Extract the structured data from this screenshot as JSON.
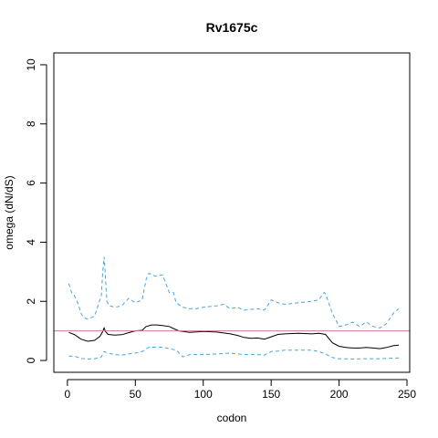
{
  "chart_data": {
    "type": "line",
    "title": "Rv1675c",
    "xlabel": "codon",
    "ylabel": "omega (dN/dS)",
    "xlim": [
      -10,
      252
    ],
    "ylim": [
      -0.4,
      10.4
    ],
    "xticks": [
      0,
      50,
      100,
      150,
      200,
      250
    ],
    "yticks": [
      0,
      2,
      4,
      6,
      8,
      10
    ],
    "grid": false,
    "reference_line": {
      "y": 1.0,
      "color": "#cc79a7"
    },
    "series": [
      {
        "style": "solid",
        "color": "#000000",
        "x": [
          1,
          5,
          10,
          15,
          20,
          24,
          26,
          27,
          28,
          30,
          35,
          40,
          45,
          50,
          55,
          58,
          62,
          66,
          70,
          75,
          78,
          82,
          90,
          100,
          110,
          120,
          125,
          130,
          135,
          140,
          145,
          150,
          155,
          160,
          170,
          180,
          185,
          190,
          195,
          200,
          205,
          210,
          215,
          220,
          225,
          230,
          235,
          240,
          244
        ],
        "y": [
          0.95,
          0.88,
          0.72,
          0.65,
          0.68,
          0.82,
          0.98,
          1.1,
          0.98,
          0.88,
          0.86,
          0.87,
          0.94,
          1.0,
          1.02,
          1.15,
          1.2,
          1.2,
          1.18,
          1.15,
          1.08,
          1.0,
          0.95,
          0.98,
          0.96,
          0.9,
          0.85,
          0.78,
          0.75,
          0.76,
          0.72,
          0.8,
          0.88,
          0.9,
          0.92,
          0.9,
          0.92,
          0.88,
          0.6,
          0.48,
          0.44,
          0.42,
          0.42,
          0.44,
          0.42,
          0.4,
          0.44,
          0.5,
          0.52
        ]
      },
      {
        "style": "dashed",
        "color": "#4aa3df",
        "x": [
          1,
          3,
          5,
          8,
          10,
          12,
          15,
          20,
          25,
          26,
          27,
          28,
          29,
          31,
          35,
          40,
          45,
          50,
          55,
          58,
          60,
          62,
          65,
          70,
          73,
          75,
          78,
          80,
          85,
          90,
          95,
          100,
          110,
          115,
          120,
          125,
          130,
          140,
          145,
          148,
          150,
          155,
          160,
          170,
          180,
          185,
          189,
          190,
          195,
          200,
          205,
          210,
          215,
          220,
          225,
          230,
          235,
          240,
          244
        ],
        "y": [
          2.6,
          2.3,
          2.2,
          1.9,
          1.6,
          1.45,
          1.4,
          1.5,
          2.2,
          3.0,
          3.5,
          2.8,
          2.0,
          1.85,
          1.8,
          1.85,
          2.1,
          1.95,
          2.05,
          2.75,
          2.95,
          2.9,
          2.85,
          2.9,
          2.55,
          2.3,
          2.3,
          1.95,
          1.8,
          1.75,
          1.75,
          1.8,
          1.85,
          1.9,
          1.75,
          1.8,
          1.7,
          1.75,
          1.7,
          1.9,
          2.05,
          1.95,
          1.9,
          1.95,
          2.0,
          2.05,
          2.3,
          2.25,
          1.6,
          1.15,
          1.2,
          1.3,
          1.15,
          1.3,
          1.15,
          1.1,
          1.25,
          1.6,
          1.75
        ]
      },
      {
        "style": "dashed",
        "color": "#4aa3df",
        "x": [
          1,
          5,
          10,
          15,
          20,
          25,
          27,
          30,
          35,
          40,
          45,
          50,
          55,
          60,
          65,
          70,
          75,
          80,
          85,
          90,
          100,
          110,
          120,
          130,
          140,
          145,
          150,
          155,
          160,
          170,
          180,
          185,
          190,
          195,
          200,
          210,
          220,
          230,
          240,
          244
        ],
        "y": [
          0.15,
          0.15,
          0.07,
          0.05,
          0.06,
          0.12,
          0.3,
          0.25,
          0.2,
          0.18,
          0.22,
          0.25,
          0.3,
          0.45,
          0.45,
          0.45,
          0.4,
          0.35,
          0.12,
          0.2,
          0.2,
          0.22,
          0.25,
          0.2,
          0.2,
          0.18,
          0.3,
          0.32,
          0.35,
          0.35,
          0.35,
          0.3,
          0.22,
          0.1,
          0.06,
          0.05,
          0.06,
          0.06,
          0.08,
          0.08
        ]
      }
    ]
  }
}
